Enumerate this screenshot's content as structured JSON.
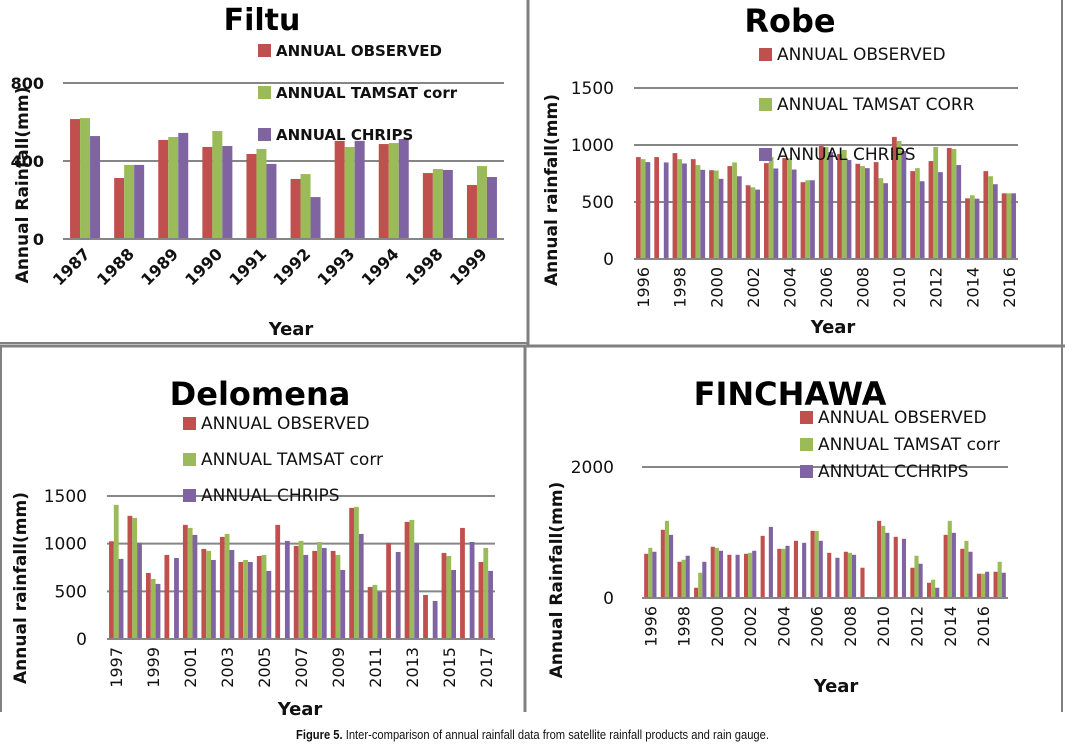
{
  "figure": {
    "caption_label": "Figure 5.",
    "caption_text": " Inter-comparison of annual rainfall data from satellite rainfall products and rain gauge."
  },
  "colors": {
    "observed": "#c0504d",
    "tamsat": "#9bbb59",
    "chrips": "#8064a2",
    "grid": "#868686",
    "border": "#808080"
  },
  "chart_data": [
    {
      "id": "filtu",
      "type": "bar",
      "title": "Filtu",
      "xlabel": "Year",
      "ylabel": "Annual Rainfall(mm)",
      "ylim": [
        0,
        800
      ],
      "yticks": [
        0,
        400,
        800
      ],
      "grid": true,
      "legend_position": "top-right",
      "xtick_rotation": "diagonal",
      "categories": [
        "1987",
        "1988",
        "1989",
        "1990",
        "1991",
        "1992",
        "1993",
        "1994",
        "1998",
        "1999"
      ],
      "xtick_labels": [
        "1987",
        "1988",
        "1989",
        "1990",
        "1991",
        "1992",
        "1993",
        "1994",
        "1998",
        "1999"
      ],
      "series": [
        {
          "name": "ANNUAL OBSERVED",
          "key": "observed",
          "values": [
            615,
            313,
            508,
            472,
            436,
            308,
            503,
            487,
            338,
            277
          ]
        },
        {
          "name": "ANNUAL TAMSAT corr",
          "key": "tamsat",
          "values": [
            620,
            380,
            523,
            554,
            462,
            333,
            472,
            492,
            359,
            374
          ]
        },
        {
          "name": "ANNUAL CHRIPS",
          "key": "chrips",
          "values": [
            528,
            380,
            544,
            477,
            385,
            215,
            503,
            513,
            354,
            318
          ]
        }
      ]
    },
    {
      "id": "robe",
      "type": "bar",
      "title": "Robe",
      "xlabel": "Year",
      "ylabel": "Annual rainfall(mm)",
      "ylim": [
        0,
        1500
      ],
      "yticks": [
        0,
        500,
        1000,
        1500
      ],
      "grid": true,
      "legend_position": "top-right",
      "xtick_rotation": "vertical",
      "categories": [
        "1996",
        "1997",
        "1998",
        "1999",
        "2000",
        "2001",
        "2002",
        "2003",
        "2004",
        "2005",
        "2006",
        "2007",
        "2008",
        "2009",
        "2010",
        "2011",
        "2012",
        "2013",
        "2014",
        "2015",
        "2016"
      ],
      "xtick_labels": [
        "1996",
        "1998",
        "2000",
        "2002",
        "2004",
        "2006",
        "2008",
        "2010",
        "2012",
        "2014",
        "2016"
      ],
      "series": [
        {
          "name": "ANNUAL OBSERVED",
          "key": "observed",
          "values": [
            894,
            894,
            929,
            876,
            779,
            815,
            647,
            841,
            885,
            674,
            991,
            921,
            835,
            850,
            1071,
            771,
            859,
            974,
            532,
            771,
            576
          ]
        },
        {
          "name": "ANNUAL TAMSAT CORR",
          "key": "tamsat",
          "values": [
            876,
            null,
            876,
            824,
            776,
            847,
            629,
            894,
            885,
            691,
            982,
            956,
            815,
            709,
            1035,
            797,
            982,
            965,
            559,
            726,
            576
          ]
        },
        {
          "name": "ANNUAL CHRIPS",
          "key": "chrips",
          "values": [
            850,
            847,
            838,
            782,
            703,
            726,
            609,
            794,
            785,
            691,
            938,
            868,
            797,
            665,
            947,
            682,
            762,
            824,
            529,
            656,
            576
          ]
        }
      ]
    },
    {
      "id": "delomena",
      "type": "bar",
      "title": "Delomena",
      "xlabel": "Year",
      "ylabel": "Annual rainfall(mm)",
      "ylim": [
        0,
        1500
      ],
      "yticks": [
        0,
        500,
        1000,
        1500
      ],
      "grid": true,
      "legend_position": "top-right",
      "xtick_rotation": "vertical",
      "categories": [
        "1997",
        "1998",
        "1999",
        "2000",
        "2001",
        "2002",
        "2003",
        "2004",
        "2005",
        "2006",
        "2007",
        "2008",
        "2009",
        "2010",
        "2011",
        "2012",
        "2013",
        "2014",
        "2015",
        "2016",
        "2017"
      ],
      "xtick_labels": [
        "1997",
        "1999",
        "2001",
        "2003",
        "2005",
        "2007",
        "2009",
        "2011",
        "2013",
        "2015",
        "2017"
      ],
      "series": [
        {
          "name": "ANNUAL OBSERVED",
          "key": "observed",
          "values": [
            1025,
            1292,
            693,
            882,
            1197,
            945,
            1071,
            808,
            871,
            1197,
            976,
            924,
            924,
            1375,
            546,
            1008,
            1228,
            462,
            903,
            1165,
            808
          ]
        },
        {
          "name": "ANNUAL TAMSAT corr",
          "key": "tamsat",
          "values": [
            1407,
            1270,
            630,
            null,
            1165,
            924,
            1102,
            829,
            882,
            null,
            1029,
            1018,
            882,
            1386,
            567,
            null,
            1249,
            null,
            871,
            null,
            955
          ]
        },
        {
          "name": "ANNUAL CHRIPS",
          "key": "chrips",
          "values": [
            840,
            1008,
            578,
            850,
            1092,
            829,
            934,
            808,
            714,
            1029,
            882,
            955,
            724,
            1102,
            493,
            913,
            1008,
            399,
            724,
            1018,
            714
          ]
        }
      ]
    },
    {
      "id": "finchawa",
      "type": "bar",
      "title": "FINCHAWA",
      "xlabel": "Year",
      "ylabel": "Annual Rainfall(mm)",
      "ylim": [
        0,
        2000
      ],
      "yticks": [
        0,
        2000
      ],
      "grid": true,
      "legend_position": "top-right",
      "xtick_rotation": "vertical",
      "categories": [
        "1996",
        "1997",
        "1998",
        "1999",
        "2000",
        "2001",
        "2002",
        "2003",
        "2004",
        "2005",
        "2006",
        "2007",
        "2008",
        "2009",
        "2010",
        "2011",
        "2012",
        "2013",
        "2014",
        "2015",
        "2016",
        "2017"
      ],
      "xtick_labels": [
        "1996",
        "1998",
        "2000",
        "2002",
        "2004",
        "2006",
        "2008",
        "2010",
        "2012",
        "2014",
        "2016"
      ],
      "series": [
        {
          "name": "ANNUAL OBSERVED",
          "key": "observed",
          "values": [
            675,
            1041,
            553,
            157,
            782,
            660,
            675,
            949,
            751,
            873,
            1025,
            690,
            706,
            462,
            1178,
            934,
            462,
            233,
            964,
            751,
            371,
            401
          ]
        },
        {
          "name": "ANNUAL TAMSAT corr",
          "key": "tamsat",
          "values": [
            766,
            1178,
            584,
            386,
            766,
            null,
            690,
            null,
            751,
            null,
            1025,
            null,
            690,
            null,
            1101,
            null,
            645,
            279,
            1178,
            873,
            371,
            553
          ]
        },
        {
          "name": "ANNUAL CCHRIPS",
          "key": "chrips",
          "values": [
            706,
            964,
            645,
            553,
            721,
            660,
            721,
            1086,
            797,
            843,
            873,
            614,
            660,
            null,
            995,
            904,
            523,
            157,
            995,
            706,
            401,
            386
          ]
        }
      ]
    }
  ]
}
